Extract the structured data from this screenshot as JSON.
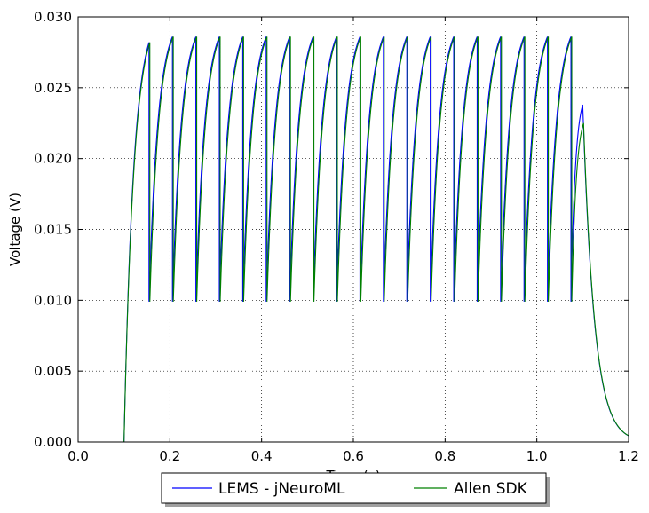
{
  "chart_data": {
    "type": "line",
    "title": "",
    "xlabel": "Time (s)",
    "ylabel": "Voltage (V)",
    "xlim": [
      0.0,
      1.2
    ],
    "ylim": [
      0.0,
      0.03
    ],
    "x_ticks": [
      "0.0",
      "0.2",
      "0.4",
      "0.6",
      "0.8",
      "1.0",
      "1.2"
    ],
    "y_ticks": [
      "0.000",
      "0.005",
      "0.010",
      "0.015",
      "0.020",
      "0.025",
      "0.030"
    ],
    "grid": true,
    "legend_position": "bottom-center",
    "model": {
      "baseline": 0.0,
      "stim_start": 0.1,
      "stim_end": 1.1,
      "reset_voltage": 0.0099,
      "threshold_first": 0.0282,
      "threshold": 0.0286,
      "spike_times": [
        0.1545,
        0.2056,
        0.2567,
        0.3078,
        0.3589,
        0.41,
        0.4611,
        0.5122,
        0.5633,
        0.6144,
        0.6655,
        0.7166,
        0.7677,
        0.8188,
        0.8699,
        0.921,
        0.9721,
        1.0232,
        1.0743
      ],
      "final_peak": {
        "time": 1.1,
        "value": 0.0238
      }
    },
    "series": [
      {
        "name": "LEMS - jNeuroML",
        "color": "#0000ff"
      },
      {
        "name": "Allen SDK",
        "color": "#008000",
        "final_peak_value": 0.0225
      }
    ]
  }
}
